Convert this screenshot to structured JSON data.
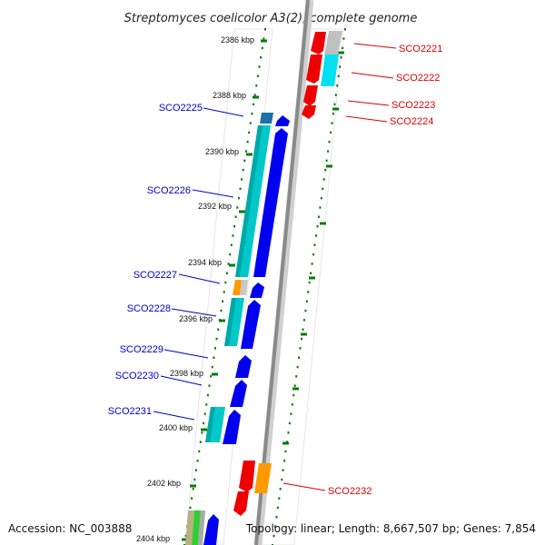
{
  "title": "Streptomyces coelicolor A3(2), complete genome",
  "footer": {
    "accession": "Accession: NC_003888",
    "summary": "Topology: linear; Length: 8,667,507 bp; Genes: 7,854"
  },
  "kbp_labels": [
    "2386 kbp",
    "2388 kbp",
    "2390 kbp",
    "2392 kbp",
    "2394 kbp",
    "2396 kbp",
    "2398 kbp",
    "2400 kbp",
    "2402 kbp",
    "2404 kbp"
  ],
  "left_genes": [
    "SCO2225",
    "SCO2226",
    "SCO2227",
    "SCO2228",
    "SCO2229",
    "SCO2230",
    "SCO2231"
  ],
  "right_genes": [
    "SCO2221",
    "SCO2222",
    "SCO2223",
    "SCO2224",
    "SCO2232"
  ],
  "colors": {
    "forward_strand_labels": "#0000cc",
    "reverse_strand_labels": "#dd0000",
    "tick_marks": "#0a7a0a",
    "genome_axis": "#888888",
    "cds_forward": "#0000ee",
    "cds_reverse": "#ee0000",
    "feature_cyan": "#00c8c8",
    "feature_orange": "#ff9900"
  }
}
